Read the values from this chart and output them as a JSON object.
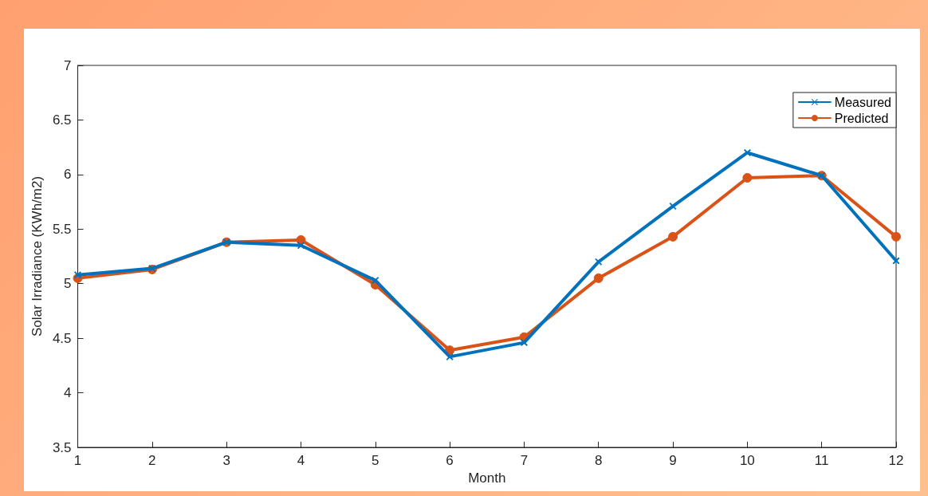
{
  "chart_data": {
    "type": "line",
    "xlabel": "Month",
    "ylabel": "Solar Irradiance (KWh/m2)",
    "x": [
      1,
      2,
      3,
      4,
      5,
      6,
      7,
      8,
      9,
      10,
      11,
      12
    ],
    "series": [
      {
        "name": "Measured",
        "color": "#0072bd",
        "marker": "cross",
        "values": [
          5.08,
          5.14,
          5.38,
          5.35,
          5.03,
          4.33,
          4.46,
          5.2,
          5.71,
          6.2,
          5.99,
          5.21
        ]
      },
      {
        "name": "Predicted",
        "color": "#d95319",
        "marker": "circle",
        "values": [
          5.05,
          5.13,
          5.38,
          5.4,
          4.99,
          4.39,
          4.51,
          5.05,
          5.43,
          5.97,
          5.99,
          5.43
        ]
      }
    ],
    "xlim": [
      1,
      12
    ],
    "xticks": [
      1,
      2,
      3,
      4,
      5,
      6,
      7,
      8,
      9,
      10,
      11,
      12
    ],
    "ylim": [
      3.5,
      7
    ],
    "yticks": [
      3.5,
      4,
      4.5,
      5,
      5.5,
      6,
      6.5,
      7
    ],
    "grid": false,
    "legend": "top right",
    "line_style": "solid"
  }
}
